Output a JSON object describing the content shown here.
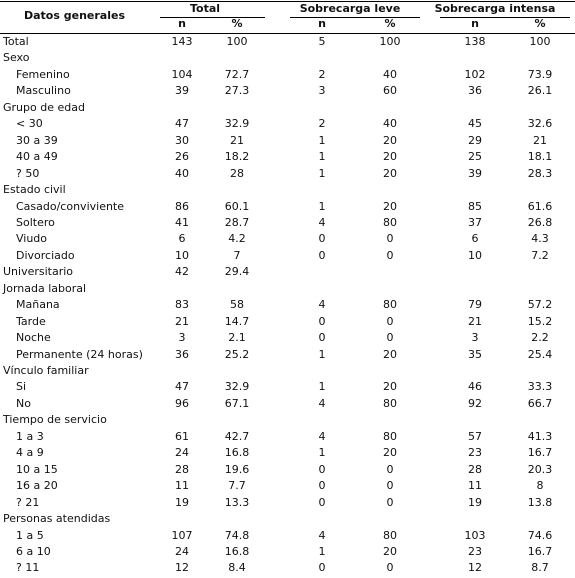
{
  "header": {
    "label": "Datos generales",
    "groups": [
      "Total",
      "Sobrecarga leve",
      "Sobrecarga intensa"
    ],
    "subheaders": [
      "n",
      "%",
      "n",
      "%",
      "n",
      "%"
    ]
  },
  "total": [
    "Total",
    143,
    100,
    5,
    100,
    138,
    100
  ],
  "sections": [
    {
      "title": "Sexo",
      "rows": [
        {
          "cells": [
            "Femenino",
            104,
            72.7,
            2,
            40,
            102,
            73.9
          ]
        },
        {
          "cells": [
            "Masculino",
            39,
            27.3,
            3,
            60,
            36,
            26.1
          ]
        }
      ]
    },
    {
      "title": "Grupo de edad",
      "rows": [
        {
          "cells": [
            "< 30",
            47,
            32.9,
            2,
            40,
            45,
            32.6
          ]
        },
        {
          "cells": [
            "30 a 39",
            30,
            21,
            1,
            20,
            29,
            21
          ]
        },
        {
          "cells": [
            "40 a 49",
            26,
            18.2,
            1,
            20,
            25,
            18.1
          ]
        },
        {
          "cells": [
            "? 50",
            40,
            28,
            1,
            20,
            39,
            28.3
          ]
        }
      ]
    },
    {
      "title": "Estado civil",
      "rows": [
        {
          "cells": [
            "Casado/conviviente",
            86,
            60.1,
            1,
            20,
            85,
            61.6
          ]
        },
        {
          "cells": [
            "Soltero",
            41,
            28.7,
            4,
            80,
            37,
            26.8
          ]
        },
        {
          "cells": [
            "Viudo",
            6,
            4.2,
            0,
            0,
            6,
            4.3
          ]
        },
        {
          "cells": [
            "Divorciado",
            10,
            7,
            0,
            0,
            10,
            7.2
          ]
        },
        {
          "cells": [
            "Universitario",
            42,
            29.4
          ],
          "indent": false
        }
      ]
    },
    {
      "title": "Jornada laboral",
      "rows": [
        {
          "cells": [
            "Mañana",
            83,
            58,
            4,
            80,
            79,
            57.2
          ]
        },
        {
          "cells": [
            "Tarde",
            21,
            14.7,
            0,
            0,
            21,
            15.2
          ]
        },
        {
          "cells": [
            "Noche",
            3,
            2.1,
            0,
            0,
            3,
            2.2
          ]
        },
        {
          "cells": [
            "Permanente (24 horas)",
            36,
            25.2,
            1,
            20,
            35,
            25.4
          ]
        }
      ]
    },
    {
      "title": "Vínculo familiar",
      "rows": [
        {
          "cells": [
            "Si",
            47,
            32.9,
            1,
            20,
            46,
            33.3
          ]
        },
        {
          "cells": [
            "No",
            96,
            67.1,
            4,
            80,
            92,
            66.7
          ]
        }
      ]
    },
    {
      "title": "Tiempo de servicio",
      "rows": [
        {
          "cells": [
            "1 a 3",
            61,
            42.7,
            4,
            80,
            57,
            41.3
          ]
        },
        {
          "cells": [
            "4 a 9",
            24,
            16.8,
            1,
            20,
            23,
            16.7
          ]
        },
        {
          "cells": [
            "10 a 15",
            28,
            19.6,
            0,
            0,
            28,
            20.3
          ]
        },
        {
          "cells": [
            "16 a 20",
            11,
            7.7,
            0,
            0,
            11,
            8
          ]
        },
        {
          "cells": [
            "? 21",
            19,
            13.3,
            0,
            0,
            19,
            13.8
          ]
        }
      ]
    },
    {
      "title": "Personas atendidas",
      "rows": [
        {
          "cells": [
            "1 a 5",
            107,
            74.8,
            4,
            80,
            103,
            74.6
          ]
        },
        {
          "cells": [
            "6 a 10",
            24,
            16.8,
            1,
            20,
            23,
            16.7
          ]
        },
        {
          "cells": [
            "? 11",
            12,
            8.4,
            0,
            0,
            12,
            8.7
          ]
        }
      ]
    }
  ]
}
